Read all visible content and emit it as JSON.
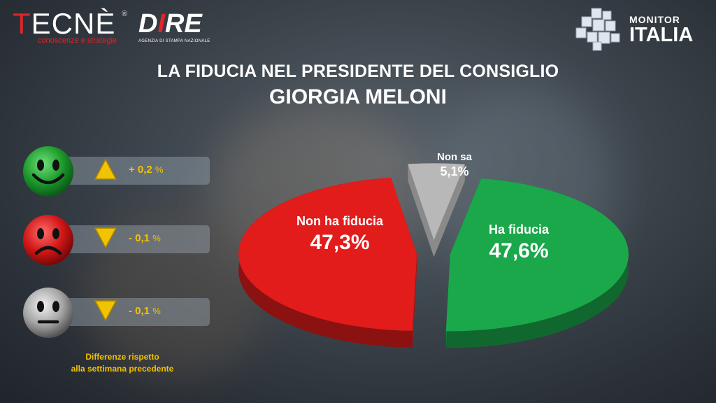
{
  "logos": {
    "tecne": {
      "name": "TECNÈ",
      "mark": "®",
      "tagline": "conoscenze e strategie"
    },
    "dire": {
      "name": "DIRE",
      "tagline": "AGENZIA DI STAMPA NAZIONALE"
    },
    "monitor": {
      "line1": "MONITOR",
      "line2": "ITALIA"
    }
  },
  "colors": {
    "positive": "#1aa84a",
    "negative": "#e21b1b",
    "unknown": "#b8b8b8",
    "delta_text": "#f2c300"
  },
  "indicators": [
    {
      "face": "happy-face-icon",
      "direction": "up",
      "value": "+ 0,2",
      "unit": "%"
    },
    {
      "face": "sad-face-icon",
      "direction": "down",
      "value": "- 0,1",
      "unit": "%"
    },
    {
      "face": "neutral-face-icon",
      "direction": "down",
      "value": "- 0,1",
      "unit": "%"
    }
  ],
  "note": {
    "line1": "Differenze rispetto",
    "line2": "alla settimana precedente"
  },
  "chart_data": {
    "type": "pie",
    "title": "LA FIDUCIA NEL PRESIDENTE DEL CONSIGLIO",
    "subtitle": "GIORGIA MELONI",
    "slices": [
      {
        "label": "Ha fiducia",
        "value": 47.6,
        "display": "47,6%",
        "color": "#1aa84a"
      },
      {
        "label": "Non ha fiducia",
        "value": 47.3,
        "display": "47,3%",
        "color": "#e21b1b"
      },
      {
        "label": "Non sa",
        "value": 5.1,
        "display": "5,1%",
        "color": "#b8b8b8"
      }
    ]
  }
}
